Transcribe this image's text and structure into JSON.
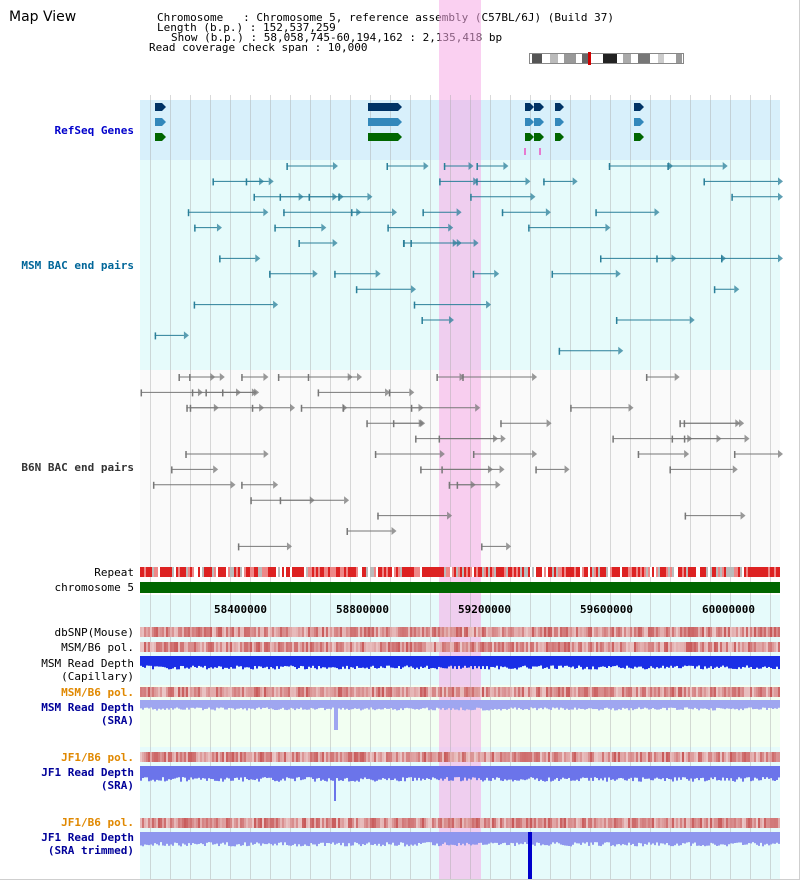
{
  "page": {
    "title": "Map View"
  },
  "info": {
    "chromosome": "Chromosome   : Chromosome 5, reference assembly (C57BL/6J) (Build 37)",
    "length": "Length (b.p.) : 152,537,259",
    "show": "Show (b.p.) : 58,058,745-60,194,162 : 2,135,418 bp",
    "span": "Read coverage check span : 10,000"
  },
  "tracks": {
    "refseq": "RefSeq Genes",
    "msm_bac": "MSM BAC end pairs",
    "b6n_bac": "B6N BAC end pairs",
    "repeat": "Repeat",
    "chrom": "chromosome 5",
    "dbsnp": "dbSNP(Mouse)",
    "msm_b6_pol": "MSM/B6 pol.",
    "msm_depth_cap_1": "MSM Read Depth",
    "msm_depth_cap_2": "(Capillary)",
    "msm_b6_pol_sra": "MSM/B6 pol.",
    "msm_depth_sra_1": "MSM Read Depth",
    "msm_depth_sra_2": "(SRA)",
    "jf1_b6_pol": "JF1/B6 pol.",
    "jf1_depth_1": "JF1 Read Depth",
    "jf1_depth_2": "(SRA)",
    "jf1_b6_pol_2": "JF1/B6 pol.",
    "jf1_trim_1": "JF1 Read Depth",
    "jf1_trim_2": "(SRA trimmed)"
  },
  "axis": {
    "ticks": [
      "58400000",
      "58800000",
      "59200000",
      "59600000",
      "60000000"
    ]
  },
  "colors": {
    "refseq_label": "#0000cc",
    "msm_label": "#006699",
    "b6n_label": "#333333",
    "pol_label": "#e08800",
    "depth_label": "#000099",
    "highlight": "#f5c4ec",
    "chromosome_bar": "#006600",
    "refseq_bg": "#d8f0fb",
    "bac_bg": "#e6fbfb",
    "cap_bg": "#f2fff2"
  }
}
